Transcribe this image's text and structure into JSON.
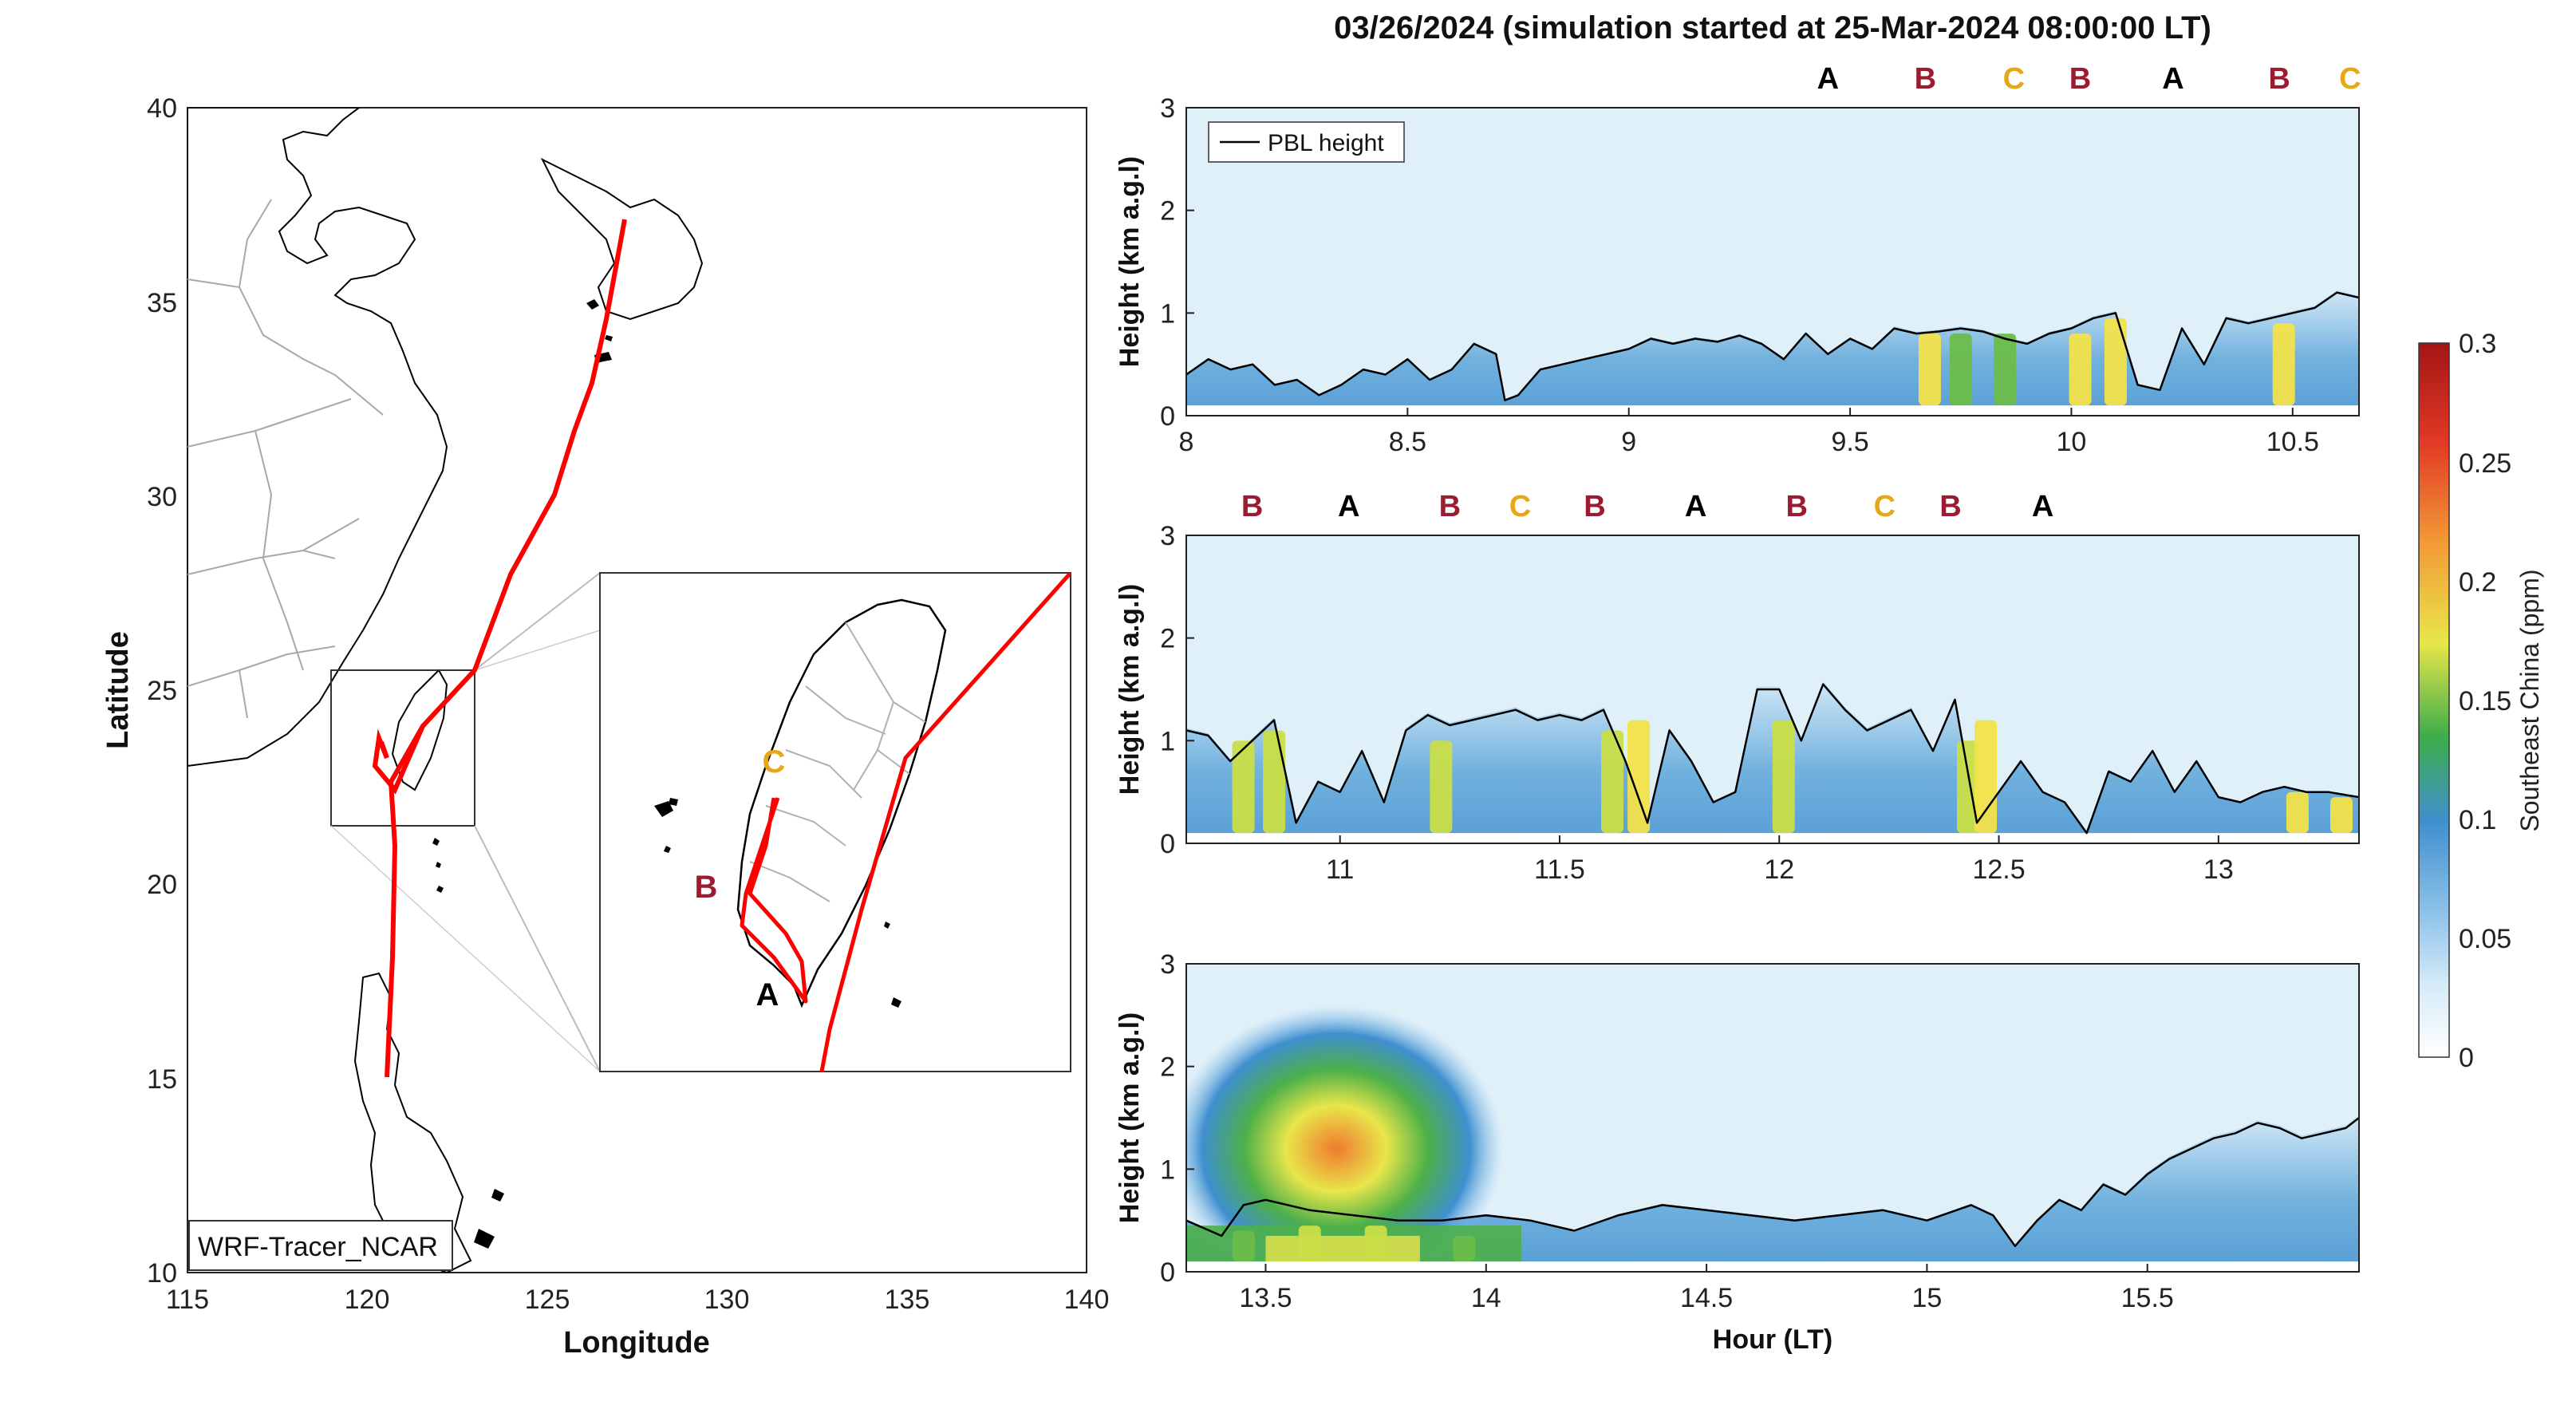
{
  "figure": {
    "title": "03/26/2024 (simulation started at 25-Mar-2024 08:00:00 LT)"
  },
  "map": {
    "xlabel": "Longitude",
    "ylabel": "Latitude",
    "xticks": [
      "115",
      "120",
      "125",
      "130",
      "135",
      "140"
    ],
    "yticks": [
      "10",
      "15",
      "20",
      "25",
      "30",
      "35",
      "40"
    ],
    "xlim": [
      115,
      140
    ],
    "ylim": [
      10,
      40
    ],
    "model_label": "WRF-Tracer_NCAR",
    "track_color": "#ff0000",
    "inset_labels": [
      {
        "text": "C",
        "color": "#e6a817"
      },
      {
        "text": "B",
        "color": "#9b1b30"
      },
      {
        "text": "A",
        "color": "#000000"
      }
    ]
  },
  "colorbar": {
    "label": "Southeast China (ppm)",
    "ticks": [
      "0",
      "0.05",
      "0.1",
      "0.15",
      "0.2",
      "0.25",
      "0.3"
    ],
    "range": [
      0,
      0.3
    ]
  },
  "chart_data": [
    {
      "type": "heatmap",
      "panel": 1,
      "xlabel": "",
      "ylabel": "Height (km a.g.l)",
      "xlim": [
        8,
        10.65
      ],
      "ylim": [
        0,
        3
      ],
      "xticks": [
        "8",
        "8.5",
        "9",
        "9.5",
        "10",
        "10.5"
      ],
      "yticks": [
        "0",
        "1",
        "2",
        "3"
      ],
      "legend": "PBL height",
      "legend_position": "top-left",
      "site_labels": [
        {
          "text": "A",
          "x": 9.45,
          "color": "#000000"
        },
        {
          "text": "B",
          "x": 9.67,
          "color": "#9b1b30"
        },
        {
          "text": "C",
          "x": 9.87,
          "color": "#e6a817"
        },
        {
          "text": "B",
          "x": 10.02,
          "color": "#9b1b30"
        },
        {
          "text": "A",
          "x": 10.23,
          "color": "#000000"
        },
        {
          "text": "B",
          "x": 10.47,
          "color": "#9b1b30"
        },
        {
          "text": "C",
          "x": 10.63,
          "color": "#e6a817"
        }
      ],
      "pbl_height": {
        "x": [
          8.0,
          8.05,
          8.1,
          8.15,
          8.2,
          8.25,
          8.3,
          8.35,
          8.4,
          8.45,
          8.5,
          8.55,
          8.6,
          8.65,
          8.7,
          8.72,
          8.75,
          8.8,
          8.85,
          8.9,
          8.95,
          9.0,
          9.05,
          9.1,
          9.15,
          9.2,
          9.25,
          9.3,
          9.35,
          9.4,
          9.45,
          9.5,
          9.55,
          9.6,
          9.65,
          9.7,
          9.75,
          9.8,
          9.85,
          9.9,
          9.95,
          10.0,
          10.05,
          10.1,
          10.15,
          10.2,
          10.25,
          10.3,
          10.35,
          10.4,
          10.45,
          10.5,
          10.55,
          10.6,
          10.65
        ],
        "y": [
          0.4,
          0.55,
          0.45,
          0.5,
          0.3,
          0.35,
          0.2,
          0.3,
          0.45,
          0.4,
          0.55,
          0.35,
          0.45,
          0.7,
          0.6,
          0.15,
          0.2,
          0.45,
          0.5,
          0.55,
          0.6,
          0.65,
          0.75,
          0.7,
          0.75,
          0.72,
          0.78,
          0.7,
          0.55,
          0.8,
          0.6,
          0.75,
          0.65,
          0.85,
          0.8,
          0.82,
          0.85,
          0.82,
          0.75,
          0.7,
          0.8,
          0.85,
          0.95,
          1.0,
          0.3,
          0.25,
          0.85,
          0.5,
          0.95,
          0.9,
          0.95,
          1.0,
          1.05,
          1.2,
          1.15
        ]
      },
      "hotspots": [
        {
          "x": 9.68,
          "top": 0.8,
          "level": 0.17
        },
        {
          "x": 9.75,
          "top": 0.8,
          "level": 0.13
        },
        {
          "x": 9.85,
          "top": 0.8,
          "level": 0.12
        },
        {
          "x": 10.02,
          "top": 0.8,
          "level": 0.17
        },
        {
          "x": 10.1,
          "top": 0.95,
          "level": 0.17
        },
        {
          "x": 10.48,
          "top": 0.9,
          "level": 0.16
        }
      ]
    },
    {
      "type": "heatmap",
      "panel": 2,
      "xlabel": "",
      "ylabel": "Height (km a.g.l)",
      "xlim": [
        10.65,
        13.32
      ],
      "ylim": [
        0,
        3
      ],
      "xticks": [
        "11",
        "11.5",
        "12",
        "12.5",
        "13"
      ],
      "yticks": [
        "0",
        "1",
        "2",
        "3"
      ],
      "site_labels": [
        {
          "text": "B",
          "x": 10.8,
          "color": "#9b1b30"
        },
        {
          "text": "A",
          "x": 11.02,
          "color": "#000000"
        },
        {
          "text": "B",
          "x": 11.25,
          "color": "#9b1b30"
        },
        {
          "text": "C",
          "x": 11.41,
          "color": "#e6a817"
        },
        {
          "text": "B",
          "x": 11.58,
          "color": "#9b1b30"
        },
        {
          "text": "A",
          "x": 11.81,
          "color": "#000000"
        },
        {
          "text": "B",
          "x": 12.04,
          "color": "#9b1b30"
        },
        {
          "text": "C",
          "x": 12.24,
          "color": "#e6a817"
        },
        {
          "text": "B",
          "x": 12.39,
          "color": "#9b1b30"
        },
        {
          "text": "A",
          "x": 12.6,
          "color": "#000000"
        }
      ],
      "pbl_height": {
        "x": [
          10.65,
          10.7,
          10.75,
          10.8,
          10.85,
          10.9,
          10.95,
          11.0,
          11.05,
          11.1,
          11.15,
          11.2,
          11.25,
          11.3,
          11.35,
          11.4,
          11.45,
          11.5,
          11.55,
          11.6,
          11.65,
          11.7,
          11.75,
          11.8,
          11.85,
          11.9,
          11.95,
          12.0,
          12.05,
          12.1,
          12.15,
          12.2,
          12.25,
          12.3,
          12.35,
          12.4,
          12.45,
          12.5,
          12.55,
          12.6,
          12.65,
          12.7,
          12.75,
          12.8,
          12.85,
          12.9,
          12.95,
          13.0,
          13.05,
          13.1,
          13.15,
          13.2,
          13.25,
          13.32
        ],
        "y": [
          1.1,
          1.05,
          0.8,
          1.0,
          1.2,
          0.2,
          0.6,
          0.5,
          0.9,
          0.4,
          1.1,
          1.25,
          1.15,
          1.2,
          1.25,
          1.3,
          1.2,
          1.25,
          1.2,
          1.3,
          0.8,
          0.2,
          1.1,
          0.8,
          0.4,
          0.5,
          1.5,
          1.5,
          1.0,
          1.55,
          1.3,
          1.1,
          1.2,
          1.3,
          0.9,
          1.4,
          0.2,
          0.5,
          0.8,
          0.5,
          0.4,
          0.1,
          0.7,
          0.6,
          0.9,
          0.5,
          0.8,
          0.45,
          0.4,
          0.5,
          0.55,
          0.5,
          0.5,
          0.45
        ]
      },
      "hotspots": [
        {
          "x": 10.78,
          "top": 1.0,
          "level": 0.15
        },
        {
          "x": 10.85,
          "top": 1.1,
          "level": 0.15
        },
        {
          "x": 11.23,
          "top": 1.0,
          "level": 0.15
        },
        {
          "x": 11.62,
          "top": 1.1,
          "level": 0.15
        },
        {
          "x": 11.68,
          "top": 1.2,
          "level": 0.17
        },
        {
          "x": 12.01,
          "top": 1.2,
          "level": 0.14
        },
        {
          "x": 12.43,
          "top": 1.0,
          "level": 0.15
        },
        {
          "x": 12.47,
          "top": 1.2,
          "level": 0.17
        },
        {
          "x": 13.18,
          "top": 0.5,
          "level": 0.16
        },
        {
          "x": 13.28,
          "top": 0.45,
          "level": 0.17
        }
      ]
    },
    {
      "type": "heatmap",
      "panel": 3,
      "xlabel": "Hour (LT)",
      "ylabel": "Height (km a.g.l)",
      "xlim": [
        13.32,
        15.98
      ],
      "ylim": [
        0,
        3
      ],
      "xticks": [
        "13.5",
        "14",
        "14.5",
        "15",
        "15.5"
      ],
      "yticks": [
        "0",
        "1",
        "2",
        "3"
      ],
      "pbl_height": {
        "x": [
          13.32,
          13.4,
          13.45,
          13.5,
          13.6,
          13.7,
          13.8,
          13.9,
          14.0,
          14.1,
          14.2,
          14.3,
          14.4,
          14.5,
          14.6,
          14.7,
          14.8,
          14.9,
          15.0,
          15.1,
          15.15,
          15.2,
          15.25,
          15.3,
          15.35,
          15.4,
          15.45,
          15.5,
          15.55,
          15.6,
          15.65,
          15.7,
          15.75,
          15.8,
          15.85,
          15.9,
          15.95,
          15.98
        ],
        "y": [
          0.5,
          0.35,
          0.65,
          0.7,
          0.6,
          0.55,
          0.5,
          0.5,
          0.55,
          0.5,
          0.4,
          0.55,
          0.65,
          0.6,
          0.55,
          0.5,
          0.55,
          0.6,
          0.5,
          0.65,
          0.55,
          0.25,
          0.5,
          0.7,
          0.6,
          0.85,
          0.75,
          0.95,
          1.1,
          1.2,
          1.3,
          1.35,
          1.45,
          1.4,
          1.3,
          1.35,
          1.4,
          1.5
        ]
      },
      "hotspots": [
        {
          "x": 13.45,
          "top": 0.4,
          "level": 0.13
        },
        {
          "x": 13.6,
          "top": 0.45,
          "level": 0.15
        },
        {
          "x": 13.75,
          "top": 0.45,
          "level": 0.14
        },
        {
          "x": 13.95,
          "top": 0.35,
          "level": 0.12
        }
      ]
    }
  ]
}
